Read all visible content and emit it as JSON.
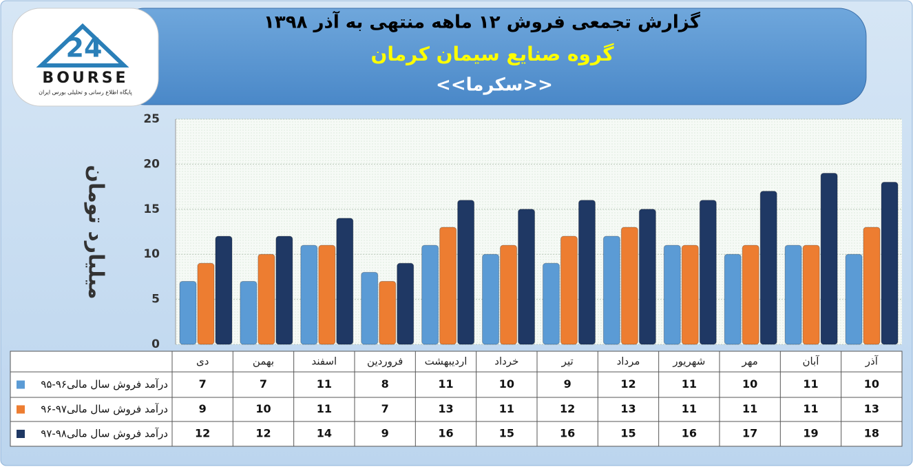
{
  "logo": {
    "number": "24",
    "name": "BOURSE",
    "tagline": "پایگاه اطلاع رسانی و تحلیلی بورس ایران"
  },
  "chart_data": {
    "type": "bar",
    "title": "گزارش تجمعی فروش ۱۲ ماهه منتهی به آذر ۱۳۹۸",
    "subtitle": "گروه صنایع سیمان کرمان",
    "subtitle2": "<<سکرما>>",
    "y_label": "میلیارد تومان",
    "categories": [
      "دی",
      "بهمن",
      "اسفند",
      "فروردین",
      "اردیبهشت",
      "خرداد",
      "تیر",
      "مرداد",
      "شهریور",
      "مهر",
      "آبان",
      "آذر"
    ],
    "series": [
      {
        "name": "درآمد فروش سال مالی۹۶-۹۵",
        "color": "#5b9bd5",
        "values": [
          7,
          7,
          11,
          8,
          11,
          10,
          9,
          12,
          11,
          10,
          11,
          10
        ]
      },
      {
        "name": "درآمد فروش سال مالی۹۷-۹۶",
        "color": "#ed7d31",
        "values": [
          9,
          10,
          11,
          7,
          13,
          11,
          12,
          13,
          11,
          11,
          11,
          13
        ]
      },
      {
        "name": "درآمد فروش سال مالی۹۸-۹۷",
        "color": "#1f3864",
        "values": [
          12,
          12,
          14,
          9,
          16,
          15,
          16,
          15,
          16,
          17,
          19,
          18
        ]
      }
    ],
    "ylim": [
      0,
      25
    ],
    "yticks": [
      0,
      5,
      10,
      15,
      20,
      25
    ],
    "grid": true
  }
}
